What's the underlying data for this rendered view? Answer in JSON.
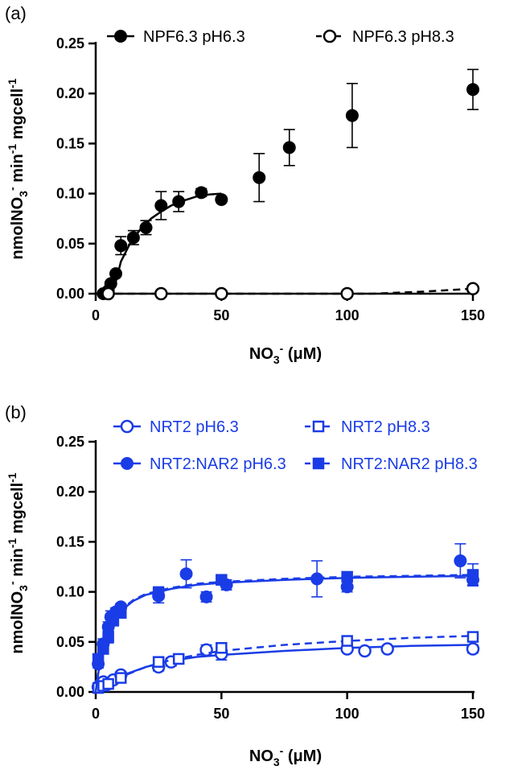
{
  "chart_data": [
    {
      "type": "scatter",
      "panel": "(a)",
      "xlabel_main": "NO",
      "xlabel_sub": "3",
      "xlabel_sup": "-",
      "xlabel_unit": " (μM)",
      "ylabel_main": "nmolNO",
      "ylabel_sub": "3",
      "ylabel_sup1": "-",
      "ylabel_mid": " min",
      "ylabel_sup2": "-1",
      "ylabel_end": " mgcell",
      "ylabel_sup3": "-1",
      "xlim": [
        0,
        150
      ],
      "ylim": [
        0,
        0.25
      ],
      "xticks": [
        "0",
        "50",
        "100",
        "150"
      ],
      "yticks": [
        "0.00",
        "0.05",
        "0.10",
        "0.15",
        "0.20",
        "0.25"
      ],
      "legend_position": "top",
      "series": [
        {
          "name": "NPF6.3 pH6.3",
          "color": "#000000",
          "marker": "filled-circle",
          "line": "solid",
          "points": [
            {
              "x": 3,
              "y": 0.0,
              "err": 0.0
            },
            {
              "x": 5,
              "y": 0.003,
              "err": 0.0
            },
            {
              "x": 6,
              "y": 0.01,
              "err": 0.0
            },
            {
              "x": 8,
              "y": 0.02,
              "err": 0.0
            },
            {
              "x": 10,
              "y": 0.048,
              "err": 0.009
            },
            {
              "x": 15,
              "y": 0.056,
              "err": 0.007
            },
            {
              "x": 20,
              "y": 0.066,
              "err": 0.007
            },
            {
              "x": 26,
              "y": 0.088,
              "err": 0.014
            },
            {
              "x": 33,
              "y": 0.092,
              "err": 0.01
            },
            {
              "x": 42,
              "y": 0.101,
              "err": 0.004
            },
            {
              "x": 50,
              "y": 0.094,
              "err": 0.0
            },
            {
              "x": 65,
              "y": 0.116,
              "err": 0.024
            },
            {
              "x": 77,
              "y": 0.146,
              "err": 0.018
            },
            {
              "x": 102,
              "y": 0.178,
              "err": 0.032
            },
            {
              "x": 150,
              "y": 0.204,
              "err": 0.02
            }
          ],
          "fit": [
            [
              6,
              0.0
            ],
            [
              8,
              0.012
            ],
            [
              10,
              0.032
            ],
            [
              14,
              0.052
            ],
            [
              18,
              0.065
            ],
            [
              22,
              0.075
            ],
            [
              26,
              0.082
            ],
            [
              30,
              0.088
            ],
            [
              35,
              0.093
            ],
            [
              40,
              0.097
            ],
            [
              45,
              0.099
            ],
            [
              50,
              0.1
            ]
          ]
        },
        {
          "name": "NPF6.3 pH8.3",
          "color": "#000000",
          "marker": "open-circle",
          "line": "dashed",
          "points": [
            {
              "x": 5,
              "y": 0.0,
              "err": 0.0
            },
            {
              "x": 26,
              "y": 0.0,
              "err": 0.0
            },
            {
              "x": 50,
              "y": 0.0,
              "err": 0.0
            },
            {
              "x": 100,
              "y": 0.0,
              "err": 0.0
            },
            {
              "x": 150,
              "y": 0.005,
              "err": 0.0
            }
          ],
          "fit": [
            [
              3,
              0.0
            ],
            [
              100,
              0.0
            ],
            [
              110,
              0.0
            ],
            [
              120,
              0.001
            ],
            [
              130,
              0.002
            ],
            [
              140,
              0.0035
            ],
            [
              150,
              0.005
            ]
          ]
        }
      ]
    },
    {
      "type": "scatter",
      "panel": "(b)",
      "xlabel_main": "NO",
      "xlabel_sub": "3",
      "xlabel_sup": "-",
      "xlabel_unit": " (μM)",
      "ylabel_main": "nmolNO",
      "ylabel_sub": "3",
      "ylabel_sup1": "-",
      "ylabel_mid": " min",
      "ylabel_sup2": "-1",
      "ylabel_end": " mgcell",
      "ylabel_sup3": "-1",
      "xlim": [
        0,
        150
      ],
      "ylim": [
        0,
        0.25
      ],
      "xticks": [
        "0",
        "50",
        "100",
        "150"
      ],
      "yticks": [
        "0.00",
        "0.05",
        "0.10",
        "0.15",
        "0.20",
        "0.25"
      ],
      "legend_position": "top",
      "series": [
        {
          "name": "NRT2 pH6.3",
          "color": "#1a3ce6",
          "marker": "open-circle",
          "line": "solid",
          "points": [
            {
              "x": 1,
              "y": 0.005,
              "err": 0.003
            },
            {
              "x": 2,
              "y": 0.008,
              "err": 0.003
            },
            {
              "x": 3,
              "y": 0.01,
              "err": 0.003
            },
            {
              "x": 5,
              "y": 0.008,
              "err": 0.003
            },
            {
              "x": 7,
              "y": 0.012,
              "err": 0.003
            },
            {
              "x": 10,
              "y": 0.017,
              "err": 0.003
            },
            {
              "x": 25,
              "y": 0.025,
              "err": 0.004
            },
            {
              "x": 30,
              "y": 0.03,
              "err": 0.004
            },
            {
              "x": 44,
              "y": 0.042,
              "err": 0.005
            },
            {
              "x": 50,
              "y": 0.038,
              "err": 0.006
            },
            {
              "x": 100,
              "y": 0.043,
              "err": 0.003
            },
            {
              "x": 107,
              "y": 0.041,
              "err": 0.0
            },
            {
              "x": 116,
              "y": 0.043,
              "err": 0.0
            },
            {
              "x": 150,
              "y": 0.043,
              "err": 0.004
            }
          ],
          "fit": [
            [
              0,
              0.0
            ],
            [
              5,
              0.009
            ],
            [
              10,
              0.016
            ],
            [
              20,
              0.025
            ],
            [
              30,
              0.031
            ],
            [
              40,
              0.035
            ],
            [
              50,
              0.037
            ],
            [
              75,
              0.041
            ],
            [
              100,
              0.044
            ],
            [
              125,
              0.046
            ],
            [
              150,
              0.047
            ]
          ]
        },
        {
          "name": "NRT2 pH8.3",
          "color": "#1a3ce6",
          "marker": "open-square",
          "line": "dashed",
          "points": [
            {
              "x": 1,
              "y": 0.004,
              "err": 0.002
            },
            {
              "x": 3,
              "y": 0.006,
              "err": 0.002
            },
            {
              "x": 5,
              "y": 0.008,
              "err": 0.002
            },
            {
              "x": 10,
              "y": 0.014,
              "err": 0.002
            },
            {
              "x": 25,
              "y": 0.03,
              "err": 0.004
            },
            {
              "x": 33,
              "y": 0.033,
              "err": 0.003
            },
            {
              "x": 50,
              "y": 0.044,
              "err": 0.005
            },
            {
              "x": 100,
              "y": 0.051,
              "err": 0.003
            },
            {
              "x": 150,
              "y": 0.055,
              "err": 0.003
            }
          ],
          "fit": [
            [
              0,
              0.0
            ],
            [
              5,
              0.008
            ],
            [
              10,
              0.015
            ],
            [
              20,
              0.025
            ],
            [
              30,
              0.032
            ],
            [
              40,
              0.037
            ],
            [
              50,
              0.041
            ],
            [
              75,
              0.047
            ],
            [
              100,
              0.051
            ],
            [
              125,
              0.054
            ],
            [
              150,
              0.056
            ]
          ]
        },
        {
          "name": "NRT2:NAR2 pH6.3",
          "color": "#1a3ce6",
          "marker": "filled-circle",
          "line": "solid",
          "points": [
            {
              "x": 1,
              "y": 0.028,
              "err": 0.004
            },
            {
              "x": 3,
              "y": 0.048,
              "err": 0.005
            },
            {
              "x": 5,
              "y": 0.065,
              "err": 0.005
            },
            {
              "x": 6,
              "y": 0.075,
              "err": 0.006
            },
            {
              "x": 8,
              "y": 0.08,
              "err": 0.004
            },
            {
              "x": 10,
              "y": 0.085,
              "err": 0.003
            },
            {
              "x": 25,
              "y": 0.096,
              "err": 0.007
            },
            {
              "x": 36,
              "y": 0.118,
              "err": 0.014
            },
            {
              "x": 44,
              "y": 0.095,
              "err": 0.005
            },
            {
              "x": 52,
              "y": 0.107,
              "err": 0.005
            },
            {
              "x": 88,
              "y": 0.113,
              "err": 0.018
            },
            {
              "x": 100,
              "y": 0.105,
              "err": 0.005
            },
            {
              "x": 145,
              "y": 0.131,
              "err": 0.017
            },
            {
              "x": 150,
              "y": 0.112,
              "err": 0.005
            }
          ],
          "fit": [
            [
              0,
              0.0
            ],
            [
              1,
              0.018
            ],
            [
              2,
              0.033
            ],
            [
              4,
              0.053
            ],
            [
              6,
              0.066
            ],
            [
              8,
              0.075
            ],
            [
              10,
              0.081
            ],
            [
              15,
              0.091
            ],
            [
              20,
              0.097
            ],
            [
              30,
              0.103
            ],
            [
              40,
              0.107
            ],
            [
              50,
              0.109
            ],
            [
              75,
              0.112
            ],
            [
              100,
              0.114
            ],
            [
              125,
              0.115
            ],
            [
              150,
              0.116
            ]
          ]
        },
        {
          "name": "NRT2:NAR2 pH8.3",
          "color": "#1a3ce6",
          "marker": "filled-square",
          "line": "dashed",
          "points": [
            {
              "x": 1,
              "y": 0.033,
              "err": 0.004
            },
            {
              "x": 3,
              "y": 0.043,
              "err": 0.005
            },
            {
              "x": 5,
              "y": 0.055,
              "err": 0.006
            },
            {
              "x": 7,
              "y": 0.072,
              "err": 0.006
            },
            {
              "x": 10,
              "y": 0.079,
              "err": 0.004
            },
            {
              "x": 25,
              "y": 0.099,
              "err": 0.006
            },
            {
              "x": 50,
              "y": 0.112,
              "err": 0.004
            },
            {
              "x": 100,
              "y": 0.115,
              "err": 0.005
            },
            {
              "x": 150,
              "y": 0.117,
              "err": 0.011
            }
          ],
          "fit": [
            [
              0,
              0.0
            ],
            [
              1,
              0.019
            ],
            [
              2,
              0.034
            ],
            [
              4,
              0.054
            ],
            [
              6,
              0.067
            ],
            [
              8,
              0.076
            ],
            [
              10,
              0.082
            ],
            [
              15,
              0.092
            ],
            [
              20,
              0.098
            ],
            [
              30,
              0.104
            ],
            [
              40,
              0.108
            ],
            [
              50,
              0.11
            ],
            [
              75,
              0.113
            ],
            [
              100,
              0.115
            ],
            [
              125,
              0.116
            ],
            [
              150,
              0.117
            ]
          ]
        }
      ]
    }
  ]
}
